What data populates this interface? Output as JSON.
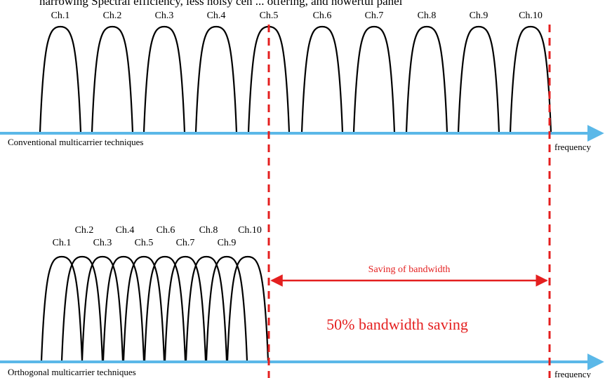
{
  "header_fragment": "narrowing  Spectral efficiency, less noisy cen  ... otfering, and nowertul panel",
  "top_panel": {
    "channels": [
      "Ch.1",
      "Ch.2",
      "Ch.3",
      "Ch.4",
      "Ch.5",
      "Ch.6",
      "Ch.7",
      "Ch.8",
      "Ch.9",
      "Ch.10"
    ],
    "technique_label": "Conventional multicarrier  techniques",
    "axis_label": "frequency"
  },
  "bottom_panel": {
    "channels_upper": [
      "Ch.2",
      "Ch.4",
      "Ch.6",
      "Ch.8",
      "Ch.10"
    ],
    "channels_lower": [
      "Ch.1",
      "Ch.3",
      "Ch.5",
      "Ch.7",
      "Ch.9"
    ],
    "technique_label": "Orthogonal multicarrier  techniques",
    "axis_label": "frequency",
    "saving_arrow_label": "Saving of bandwidth",
    "saving_text": "50% bandwidth saving"
  },
  "colors": {
    "axis": "#5bb8e8",
    "curve": "#000000",
    "dashed": "#e41f1f",
    "annotation": "#e41f1f"
  }
}
